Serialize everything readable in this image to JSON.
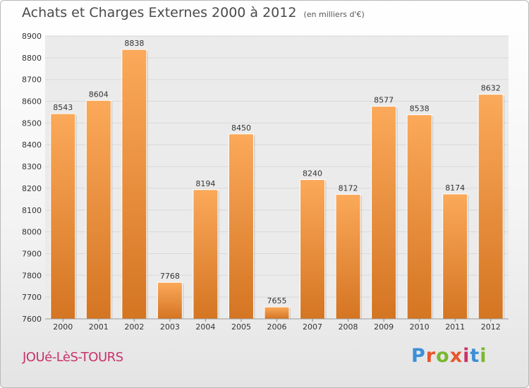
{
  "title": "Achats et Charges Externes 2000 à 2012",
  "unit": "(en milliers d'€)",
  "city": "JOUé-LèS-TOURS",
  "logo": {
    "text": "Proxiti",
    "letter_colors": [
      "#3b8fd6",
      "#e8562a",
      "#7ab830",
      "#e8562a",
      "#c8326a",
      "#3b8fd6",
      "#7ab830"
    ]
  },
  "colors": {
    "bar_light": "#fba95a",
    "bar_dark": "#d47522",
    "grid": "#d9d9d9",
    "axis_text": "#333333",
    "plot_bg": "#ebebeb"
  },
  "chart_data": {
    "type": "bar",
    "title": "Achats et Charges Externes 2000 à 2012",
    "categories": [
      "2000",
      "2001",
      "2002",
      "2003",
      "2004",
      "2005",
      "2006",
      "2007",
      "2008",
      "2009",
      "2010",
      "2011",
      "2012"
    ],
    "values": [
      8543,
      8604,
      8838,
      7768,
      8194,
      8450,
      7655,
      8240,
      8172,
      8577,
      8538,
      8174,
      8632
    ],
    "ylim": [
      7600,
      8900
    ],
    "yticks": [
      7600,
      7700,
      7800,
      7900,
      8000,
      8100,
      8200,
      8300,
      8400,
      8500,
      8600,
      8700,
      8800,
      8900
    ],
    "xlabel": "",
    "ylabel": "",
    "grid": true,
    "data_labels": true
  }
}
